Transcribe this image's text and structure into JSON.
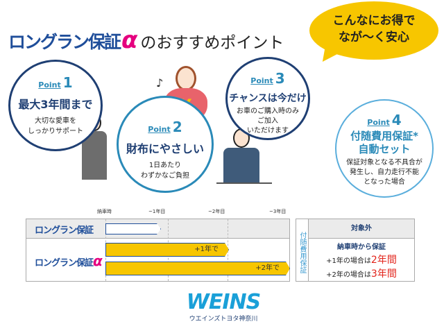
{
  "header": {
    "title_main": "ロングラン保証",
    "title_alpha": "α",
    "title_rest": "のおすすめポイント",
    "bubble_line1": "こんなにお得で",
    "bubble_line2": "なが〜く安心"
  },
  "points": [
    {
      "label": "Point",
      "num": "1",
      "head": "最大3年間まで",
      "sub": [
        "大切な愛車を",
        "しっかりサポート"
      ]
    },
    {
      "label": "Point",
      "num": "2",
      "head": "財布にやさしい",
      "sub": [
        "1日あたり",
        "わずかなご負担"
      ]
    },
    {
      "label": "Point",
      "num": "3",
      "head": "チャンスは今だけ",
      "sub": [
        "お車のご購入時のみ",
        "ご加入",
        "いただけます"
      ]
    },
    {
      "label": "Point",
      "num": "4",
      "head": [
        "付随費用保証*",
        "自動セット"
      ],
      "sub": [
        "保証対象となる不具合が",
        "発生し、自力走行不能",
        "となった場合"
      ]
    }
  ],
  "icons": {
    "music": "♪",
    "yen": "¥"
  },
  "timeline": {
    "ticks": [
      "納車時",
      "~1年目",
      "~2年目",
      "~3年目"
    ],
    "rows": [
      {
        "name": "ロングラン保証"
      },
      {
        "name": "ロングラン保証",
        "alpha": "α"
      }
    ],
    "bars": [
      {
        "label": "+1年で",
        "years": 2
      },
      {
        "label": "+2年で",
        "years": 3
      }
    ],
    "base_years": 1
  },
  "side": {
    "vertical": "付随費用保証",
    "header": "対象外",
    "line1": "納車時から保証",
    "line2_pre": "+1年の場合は",
    "line2_val": "2年間",
    "line3_pre": "+2年の場合は",
    "line3_val": "3年間"
  },
  "footer": {
    "logo": "WEINS",
    "company": "ウエインズトヨタ神奈川"
  }
}
